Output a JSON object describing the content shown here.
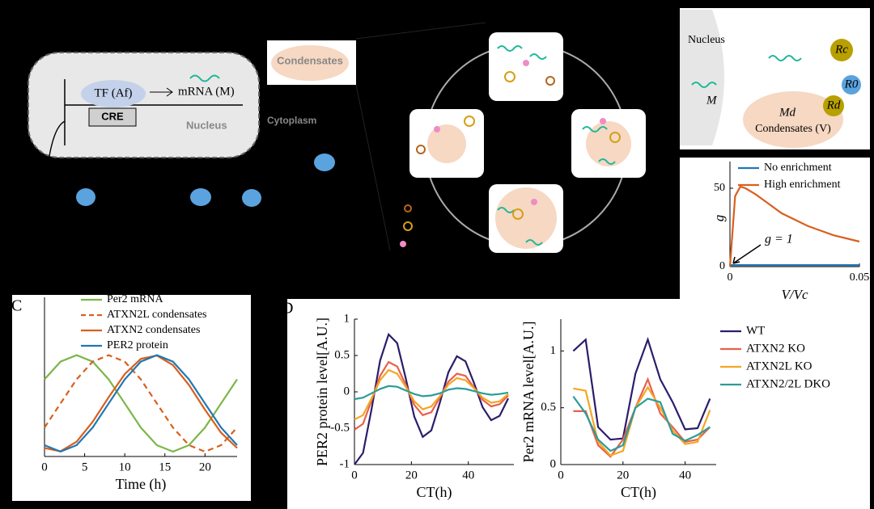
{
  "diagram": {
    "panel_a": {
      "tf": "TF (Af)",
      "mrna": "mRNA (M)",
      "cre": "CRE",
      "nucleus": "Nucleus",
      "condensates": "Condensates",
      "cytoplasm": "Cytoplasm"
    },
    "panel_b": {
      "nucleus": "Nucleus",
      "m": "M",
      "md": "Md",
      "rc": "Rc",
      "r0": "R0",
      "rd": "Rd",
      "condensates": "Condensates (V)"
    },
    "panel_c_label": "C",
    "panel_d_label": "D"
  },
  "chart_data": [
    {
      "type": "line",
      "ylabel": "g",
      "xlabel": "V/Vc",
      "x": [
        0,
        0.002,
        0.004,
        0.006,
        0.01,
        0.015,
        0.02,
        0.03,
        0.04,
        0.05
      ],
      "xlim": [
        0,
        0.05
      ],
      "ylim": [
        0,
        67
      ],
      "xticks": [
        0,
        0.05
      ],
      "yticks": [
        0,
        50
      ],
      "annotations": [
        "g = 1"
      ],
      "series": [
        {
          "name": "No enrichment",
          "color": "#1f77b4",
          "values": [
            1,
            1,
            1,
            1,
            1,
            1,
            1,
            1,
            1,
            1
          ]
        },
        {
          "name": "High enrichment",
          "color": "#d95f1e",
          "values": [
            0,
            45,
            51,
            50,
            46,
            40,
            34,
            26,
            20,
            16
          ]
        }
      ]
    },
    {
      "type": "line",
      "xlabel": "Time (h)",
      "x": [
        0,
        2,
        4,
        6,
        8,
        10,
        12,
        14,
        16,
        18,
        20,
        22,
        24
      ],
      "xlim": [
        0,
        24
      ],
      "ylim": [
        -0.05,
        1.6
      ],
      "xticks": [
        0,
        5,
        10,
        15,
        20
      ],
      "series": [
        {
          "name": "Per2 mRNA",
          "color": "#7ab648",
          "values": [
            0.75,
            0.933,
            1,
            0.933,
            0.75,
            0.5,
            0.25,
            0.067,
            0,
            0.067,
            0.25,
            0.5,
            0.75
          ]
        },
        {
          "name": "ATXN2L condensates",
          "color": "#d95f1e",
          "linestyle": "dashed",
          "values": [
            0.25,
            0.5,
            0.75,
            0.933,
            1,
            0.933,
            0.75,
            0.5,
            0.25,
            0.067,
            0,
            0.067,
            0.25
          ]
        },
        {
          "name": "ATXN2 condensates",
          "color": "#d95f1e",
          "values": [
            0.038,
            0.004,
            0.103,
            0.309,
            0.565,
            0.804,
            0.962,
            0.996,
            0.897,
            0.691,
            0.435,
            0.196,
            0.038
          ]
        },
        {
          "name": "PER2 protein",
          "color": "#1f77b4",
          "values": [
            0.067,
            0,
            0.067,
            0.25,
            0.5,
            0.75,
            0.933,
            1,
            0.933,
            0.75,
            0.5,
            0.25,
            0.067
          ]
        }
      ]
    },
    {
      "type": "line",
      "xlabel": "CT(h)",
      "ylabel": "PER2 protein level[A.U.]",
      "x": [
        0,
        3,
        6,
        9,
        12,
        15,
        18,
        21,
        24,
        27,
        30,
        33,
        36,
        39,
        42,
        45,
        48,
        51,
        54
      ],
      "xlim": [
        0,
        56
      ],
      "ylim": [
        -1,
        1
      ],
      "xticks": [
        0,
        20,
        40
      ],
      "yticks": [
        -1,
        -0.5,
        0,
        0.5,
        1
      ],
      "series": [
        {
          "name": "WT",
          "color": "#2b1d6b",
          "values": [
            -1.0,
            -0.84,
            -0.24,
            0.43,
            0.79,
            0.67,
            0.19,
            -0.34,
            -0.62,
            -0.53,
            -0.15,
            0.27,
            0.49,
            0.42,
            0.12,
            -0.21,
            -0.39,
            -0.33,
            -0.09
          ]
        },
        {
          "name": "ATXN2 KO",
          "color": "#e8604c",
          "values": [
            -0.52,
            -0.44,
            -0.12,
            0.22,
            0.41,
            0.35,
            0.1,
            -0.18,
            -0.32,
            -0.28,
            -0.08,
            0.14,
            0.25,
            0.22,
            0.06,
            -0.11,
            -0.2,
            -0.17,
            -0.05
          ]
        },
        {
          "name": "ATXN2L KO",
          "color": "#f5a623",
          "values": [
            -0.38,
            -0.32,
            -0.09,
            0.16,
            0.3,
            0.25,
            0.07,
            -0.13,
            -0.24,
            -0.2,
            -0.06,
            0.1,
            0.19,
            0.16,
            0.05,
            -0.08,
            -0.15,
            -0.13,
            -0.03
          ]
        },
        {
          "name": "ATXN2/2L DKO",
          "color": "#2a9d9a",
          "values": [
            -0.1,
            -0.08,
            -0.02,
            0.04,
            0.08,
            0.07,
            0.02,
            -0.03,
            -0.06,
            -0.05,
            -0.02,
            0.03,
            0.05,
            0.04,
            0.01,
            -0.02,
            -0.04,
            -0.03,
            -0.01
          ]
        }
      ]
    },
    {
      "type": "line",
      "xlabel": "CT(h)",
      "ylabel": "Per2 mRNA level[A.U.]",
      "x": [
        4,
        8,
        12,
        16,
        20,
        24,
        28,
        32,
        36,
        40,
        44,
        48
      ],
      "xlim": [
        0,
        50
      ],
      "ylim": [
        0,
        1.28
      ],
      "xticks": [
        0,
        20,
        40
      ],
      "yticks": [
        0,
        0.5,
        1
      ],
      "series": [
        {
          "name": "WT",
          "color": "#2b1d6b",
          "values": [
            1.0,
            1.1,
            0.33,
            0.22,
            0.23,
            0.8,
            1.1,
            0.75,
            0.55,
            0.31,
            0.32,
            0.58
          ]
        },
        {
          "name": "ATXN2 KO",
          "color": "#e8604c",
          "values": [
            0.47,
            0.47,
            0.17,
            0.07,
            0.22,
            0.5,
            0.75,
            0.45,
            0.33,
            0.2,
            0.22,
            0.33
          ]
        },
        {
          "name": "ATXN2L KO",
          "color": "#f5a623",
          "values": [
            0.67,
            0.65,
            0.2,
            0.08,
            0.12,
            0.5,
            0.68,
            0.5,
            0.3,
            0.18,
            0.2,
            0.48
          ]
        },
        {
          "name": "ATXN2/2L DKO",
          "color": "#2a9d9a",
          "values": [
            0.6,
            0.45,
            0.22,
            0.12,
            0.17,
            0.5,
            0.58,
            0.55,
            0.27,
            0.21,
            0.26,
            0.33
          ]
        }
      ]
    }
  ]
}
